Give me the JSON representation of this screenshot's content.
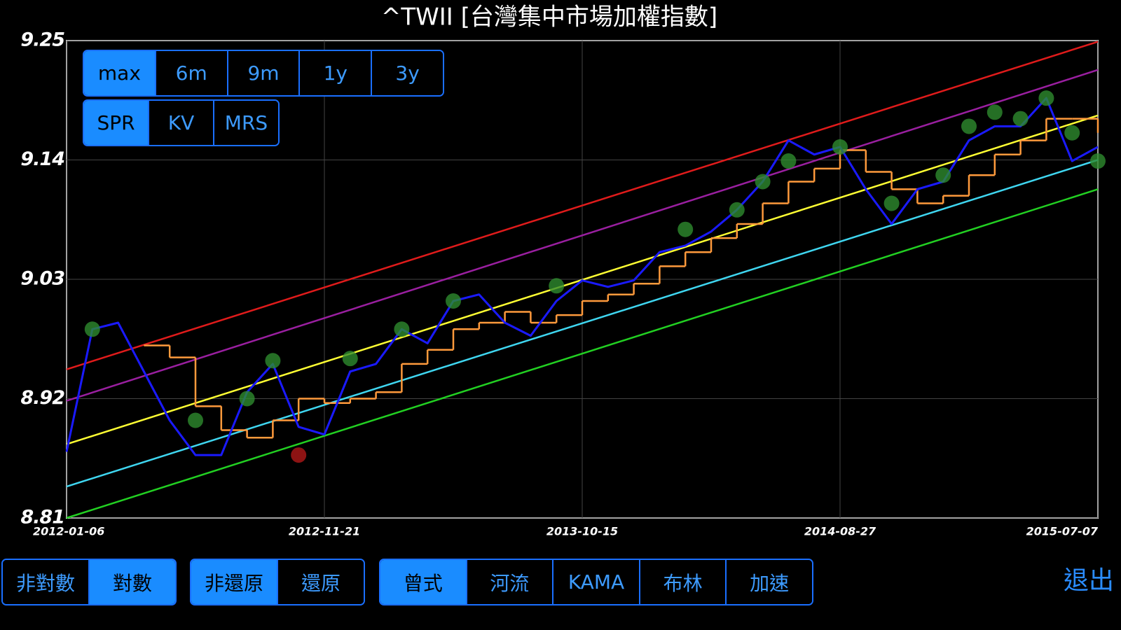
{
  "chart_data": {
    "type": "line",
    "title": "^TWII [台灣集中市場加權指數]",
    "categories": [
      "2012-01-06",
      null,
      null,
      null,
      null,
      null,
      null,
      null,
      null,
      null,
      "2012-11-21",
      null,
      null,
      null,
      null,
      null,
      null,
      null,
      null,
      null,
      "2013-10-15",
      null,
      null,
      null,
      null,
      null,
      null,
      null,
      null,
      null,
      "2014-08-27",
      null,
      null,
      null,
      null,
      null,
      null,
      null,
      null,
      null,
      "2015-07-07"
    ],
    "ylim": [
      8.81,
      9.25
    ],
    "yticks": [
      8.81,
      8.92,
      9.03,
      9.14,
      9.25
    ],
    "grid": true,
    "series": [
      {
        "color": "#1a1aff",
        "values": [
          8.871,
          8.984,
          8.99,
          8.945,
          8.9,
          8.868,
          8.868,
          8.926,
          8.952,
          8.894,
          8.887,
          8.945,
          8.952,
          8.984,
          8.971,
          9.01,
          9.016,
          8.99,
          8.978,
          9.01,
          9.029,
          9.023,
          9.029,
          9.055,
          9.061,
          9.074,
          9.094,
          9.12,
          9.158,
          9.145,
          9.152,
          9.113,
          9.081,
          9.113,
          9.12,
          9.158,
          9.171,
          9.171,
          9.197,
          9.139,
          9.152
        ]
      },
      {
        "color": "#ff9a3c",
        "step": true,
        "values": [
          null,
          null,
          null,
          8.969,
          8.958,
          8.913,
          8.891,
          8.884,
          8.9,
          8.92,
          8.916,
          8.92,
          8.926,
          8.952,
          8.965,
          8.984,
          8.99,
          9.0,
          8.99,
          8.997,
          9.01,
          9.016,
          9.026,
          9.042,
          9.055,
          9.068,
          9.081,
          9.1,
          9.12,
          9.132,
          9.149,
          9.129,
          9.113,
          9.1,
          9.107,
          9.126,
          9.145,
          9.158,
          9.178,
          9.178,
          9.165
        ]
      },
      {
        "color": "#2e8b2e",
        "marker": true,
        "values": [
          null,
          8.984,
          null,
          null,
          null,
          8.9,
          null,
          8.92,
          8.955,
          null,
          null,
          8.957,
          null,
          8.984,
          null,
          9.01,
          null,
          null,
          null,
          9.024,
          null,
          null,
          null,
          null,
          9.076,
          null,
          9.094,
          9.12,
          9.139,
          null,
          9.152,
          null,
          9.1,
          null,
          9.126,
          9.171,
          9.184,
          9.178,
          9.197,
          9.165,
          9.139
        ]
      },
      {
        "color": "#b01818",
        "marker": true,
        "values": [
          null,
          null,
          null,
          null,
          null,
          null,
          null,
          null,
          null,
          8.868,
          null,
          null,
          null,
          null,
          null,
          null,
          null,
          null,
          null,
          null,
          null,
          null,
          null,
          null,
          null,
          null,
          null,
          null,
          null,
          null,
          null,
          null,
          null,
          null,
          null,
          null,
          null,
          null,
          null,
          null,
          null
        ]
      }
    ],
    "channels": [
      {
        "color": "#e01b1b",
        "start": 8.947,
        "end": 9.249
      },
      {
        "color": "#9a1fa0",
        "start": 8.918,
        "end": 9.223
      },
      {
        "color": "#ffff33",
        "start": 8.878,
        "end": 9.181
      },
      {
        "color": "#3fd6f0",
        "start": 8.839,
        "end": 9.14
      },
      {
        "color": "#22d022",
        "start": 8.81,
        "end": 9.113
      }
    ]
  },
  "controls": {
    "range": {
      "items": [
        "max",
        "6m",
        "9m",
        "1y",
        "3y"
      ],
      "active": 0
    },
    "indicator": {
      "items": [
        "SPR",
        "KV",
        "MRS"
      ],
      "active": 0
    },
    "scale": {
      "items": [
        "非對數",
        "對數"
      ],
      "active": 1
    },
    "adjust": {
      "items": [
        "非還原",
        "還原"
      ],
      "active": 0
    },
    "method": {
      "items": [
        "曾式",
        "河流",
        "KAMA",
        "布林",
        "加速"
      ],
      "active": 0
    },
    "exit": "退出"
  }
}
